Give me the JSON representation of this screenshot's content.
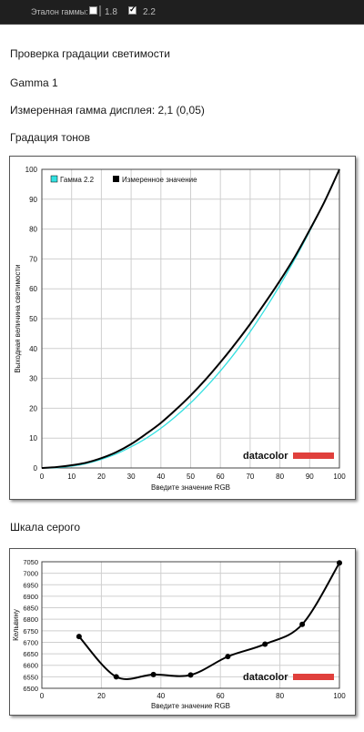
{
  "topbar": {
    "label": "Эталон гаммы:",
    "options": [
      {
        "label": "1.8",
        "checked": false
      },
      {
        "label": "2.2",
        "checked": true
      }
    ]
  },
  "content": {
    "section_title": "Проверка градации светимости",
    "gamma_name": "Gamma 1",
    "measured_gamma": "Измеренная гамма дисплея: 2,1 (0,05)",
    "tone_title": "Градация тонов",
    "gray_title": "Шкала серого"
  },
  "colors": {
    "cyan": "#33e0e0",
    "black": "#000000",
    "brand_red": "#e0403c"
  },
  "brand": "datacolor",
  "chart_data": [
    {
      "type": "line",
      "xlabel": "Введите значение RGB",
      "ylabel": "Выходная величина светимости",
      "xlim": [
        0,
        100
      ],
      "ylim": [
        0,
        100
      ],
      "xticks": [
        "0",
        "10",
        "20",
        "30",
        "40",
        "50",
        "60",
        "70",
        "80",
        "90",
        "100"
      ],
      "yticks": [
        "0",
        "10",
        "20",
        "30",
        "40",
        "50",
        "60",
        "70",
        "80",
        "90",
        "100"
      ],
      "grid": true,
      "legend_position": "top-left",
      "series": [
        {
          "name": "Гамма 2.2",
          "color": "#33e0e0",
          "x": [
            0,
            5,
            10,
            15,
            20,
            25,
            30,
            35,
            40,
            45,
            50,
            55,
            60,
            65,
            70,
            75,
            80,
            85,
            90,
            95,
            100
          ],
          "y": [
            0,
            0.1,
            0.6,
            1.5,
            2.9,
            4.7,
            7.1,
            9.9,
            13.3,
            17.3,
            21.8,
            26.9,
            32.5,
            38.7,
            45.6,
            53.1,
            61.2,
            69.9,
            79.3,
            89.3,
            100
          ]
        },
        {
          "name": "Измеренное значение",
          "color": "#000000",
          "x": [
            0,
            5,
            10,
            15,
            20,
            25,
            30,
            35,
            40,
            45,
            50,
            55,
            60,
            65,
            70,
            75,
            80,
            85,
            90,
            95,
            100
          ],
          "y": [
            0,
            0.3,
            0.9,
            1.8,
            3.3,
            5.3,
            8,
            11.4,
            15.1,
            19.5,
            24.3,
            29.6,
            35.4,
            41.6,
            48.2,
            55.3,
            62.7,
            70.7,
            79.7,
            89.2,
            100
          ]
        }
      ]
    },
    {
      "type": "line",
      "xlabel": "Введите значение RGB",
      "ylabel": "Кельвину",
      "xlim": [
        0,
        100
      ],
      "ylim": [
        6500,
        7050
      ],
      "xticks": [
        "0",
        "20",
        "40",
        "60",
        "80",
        "100"
      ],
      "yticks": [
        "6500",
        "6550",
        "6600",
        "6650",
        "6700",
        "6750",
        "6800",
        "6850",
        "6900",
        "6950",
        "7000",
        "7050"
      ],
      "grid": true,
      "series": [
        {
          "name": "",
          "color": "#000000",
          "x": [
            12.5,
            25,
            37.5,
            50,
            62.5,
            75,
            87.5,
            100
          ],
          "y": [
            6725,
            6550,
            6560,
            6558,
            6638,
            6692,
            6778,
            7045
          ]
        }
      ]
    }
  ]
}
